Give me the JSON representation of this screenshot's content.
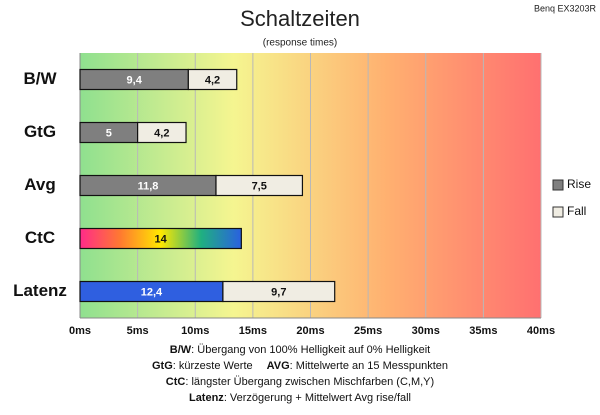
{
  "chart_data": {
    "type": "stacked-barh",
    "title": "Schaltzeiten",
    "subtitle": "(response times)",
    "corner_label": "Benq EX3203R",
    "categories": [
      "B/W",
      "GtG",
      "Avg",
      "CtC",
      "Latenz"
    ],
    "series": [
      {
        "name": "Rise",
        "color": "#7f7f7f",
        "colors": [
          "#7f7f7f",
          "#7f7f7f",
          "#7f7f7f",
          [
            "#ff2a8a",
            "#ff7a30",
            "#ffe800",
            "#20b080",
            "#2a60e0"
          ],
          "#2f5fe0"
        ],
        "values": [
          9.4,
          5,
          11.8,
          14,
          12.4
        ],
        "value_labels": [
          "9,4",
          "5",
          "11,8",
          "14",
          "12,4"
        ]
      },
      {
        "name": "Fall",
        "color": "#f0ede3",
        "values": [
          4.2,
          4.2,
          7.5,
          null,
          9.7
        ],
        "value_labels": [
          "4,2",
          "4,2",
          "7,5",
          null,
          "9,7"
        ]
      }
    ],
    "xlim": [
      0,
      40
    ],
    "xticks": [
      {
        "value": 0,
        "label": "0ms"
      },
      {
        "value": 5,
        "label": "5ms"
      },
      {
        "value": 10,
        "label": "10ms"
      },
      {
        "value": 15,
        "label": "15ms"
      },
      {
        "value": 20,
        "label": "20ms"
      },
      {
        "value": 25,
        "label": "25ms"
      },
      {
        "value": 30,
        "label": "30ms"
      },
      {
        "value": 35,
        "label": "35ms"
      },
      {
        "value": 40,
        "label": "40ms"
      }
    ],
    "grid": true,
    "legend": "right",
    "background_gradient": [
      "#8fe08f",
      "#f5f590",
      "#ffb070",
      "#ff7070"
    ],
    "notes": [
      [
        {
          "term": "B/W",
          "text": ":  Übergang von 100% Helligkeit auf 0% Helligkeit"
        }
      ],
      [
        {
          "term": "GtG",
          "text": ": kürzeste  Werte"
        },
        {
          "term": "AVG",
          "text": ": Mittelwerte  an 15 Messpunkten"
        }
      ],
      [
        {
          "term": "CtC",
          "text": ": längster Übergang  zwischen Mischfarben  (C,M,Y)"
        }
      ],
      [
        {
          "term": "Latenz",
          "text": ": Verzögerung  + Mittelwert  Avg rise/fall"
        }
      ]
    ]
  }
}
